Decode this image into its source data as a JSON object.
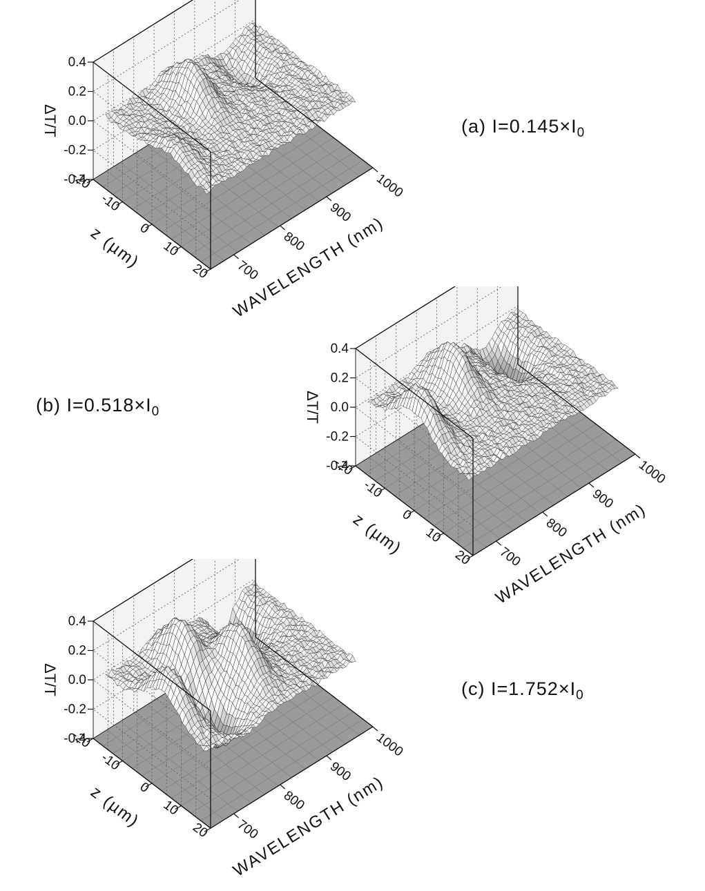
{
  "chart_data": [
    {
      "type": "surface",
      "panel": "a",
      "label_prefix": "(a) I=0.145×I",
      "label_sub": "0",
      "intensity_factor": 0.145,
      "xlabel": "WAVELENGTH (nm)",
      "ylabel": "z (µm)",
      "zlabel": "ΔT/T",
      "xlim": [
        650,
        1000
      ],
      "ylim": [
        -20,
        20
      ],
      "zlim": [
        -0.4,
        0.4
      ],
      "x_ticks": [
        "700",
        "800",
        "900",
        "1000"
      ],
      "y_ticks": [
        "-20",
        "-10",
        "0",
        "10",
        "20"
      ],
      "z_ticks": [
        "0.4",
        "0.2",
        "0.0",
        "-0.2",
        "-0.4"
      ],
      "features": [
        {
          "x": 690,
          "y": 2,
          "z": 0.12
        },
        {
          "x": 800,
          "y": -10,
          "z": 0.25
        },
        {
          "x": 920,
          "y": -12,
          "z": -0.15
        }
      ]
    },
    {
      "type": "surface",
      "panel": "b",
      "label_prefix": "(b) I=0.518×I",
      "label_sub": "0",
      "intensity_factor": 0.518,
      "xlabel": "WAVELENGTH (nm)",
      "ylabel": "z (µm)",
      "zlabel": "ΔT/T",
      "xlim": [
        650,
        1000
      ],
      "ylim": [
        -20,
        20
      ],
      "zlim": [
        -0.4,
        0.4
      ],
      "x_ticks": [
        "700",
        "800",
        "900",
        "1000"
      ],
      "y_ticks": [
        "-20",
        "-10",
        "0",
        "10",
        "20"
      ],
      "z_ticks": [
        "0.4",
        "0.2",
        "0.0",
        "-0.2",
        "-0.4"
      ],
      "features": [
        {
          "x": 690,
          "y": -4,
          "z": 0.3
        },
        {
          "x": 800,
          "y": -10,
          "z": 0.28
        },
        {
          "x": 920,
          "y": -12,
          "z": -0.3
        }
      ]
    },
    {
      "type": "surface",
      "panel": "c",
      "label_prefix": "(c) I=1.752×I",
      "label_sub": "0",
      "intensity_factor": 1.752,
      "xlabel": "WAVELENGTH (nm)",
      "ylabel": "z (µm)",
      "zlabel": "ΔT/T",
      "xlim": [
        650,
        1000
      ],
      "ylim": [
        -20,
        20
      ],
      "zlim": [
        -0.4,
        0.4
      ],
      "x_ticks": [
        "700",
        "800",
        "900",
        "1000"
      ],
      "y_ticks": [
        "-20",
        "-10",
        "0",
        "10",
        "20"
      ],
      "z_ticks": [
        "0.4",
        "0.2",
        "0.0",
        "-0.2",
        "-0.4"
      ],
      "features": [
        {
          "x": 690,
          "y": 0,
          "z": 0.3
        },
        {
          "x": 780,
          "y": -10,
          "z": 0.3
        },
        {
          "x": 840,
          "y": 0,
          "z": 0.3
        },
        {
          "x": 760,
          "y": 4,
          "z": -0.3
        },
        {
          "x": 920,
          "y": -14,
          "z": -0.35
        }
      ]
    }
  ]
}
